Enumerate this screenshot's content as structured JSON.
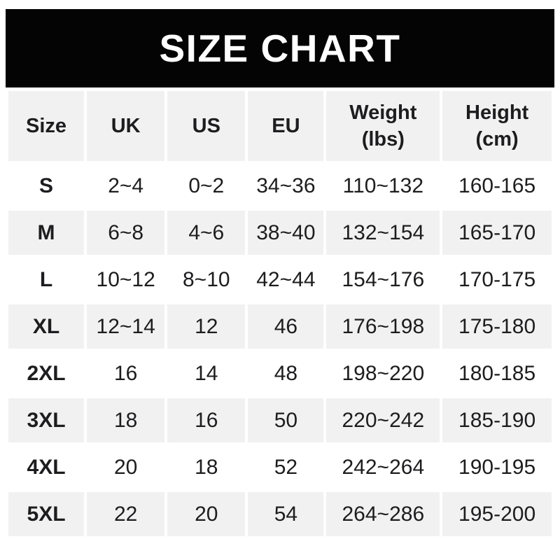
{
  "banner": {
    "title": "SIZE CHART"
  },
  "chart_data": {
    "type": "table",
    "title": "SIZE CHART",
    "columns": [
      [
        "Size"
      ],
      [
        "UK"
      ],
      [
        "US"
      ],
      [
        "EU"
      ],
      [
        "Weight",
        "(lbs)"
      ],
      [
        "Height",
        "(cm)"
      ]
    ],
    "rows": [
      [
        "S",
        "2~4",
        "0~2",
        "34~36",
        "110~132",
        "160-165"
      ],
      [
        "M",
        "6~8",
        "4~6",
        "38~40",
        "132~154",
        "165-170"
      ],
      [
        "L",
        "10~12",
        "8~10",
        "42~44",
        "154~176",
        "170-175"
      ],
      [
        "XL",
        "12~14",
        "12",
        "46",
        "176~198",
        "175-180"
      ],
      [
        "2XL",
        "16",
        "14",
        "48",
        "198~220",
        "180-185"
      ],
      [
        "3XL",
        "18",
        "16",
        "50",
        "220~242",
        "185-190"
      ],
      [
        "4XL",
        "20",
        "18",
        "52",
        "242~264",
        "190-195"
      ],
      [
        "5XL",
        "22",
        "20",
        "54",
        "264~286",
        "195-200"
      ]
    ]
  },
  "colors": {
    "banner_bg": "#040404",
    "banner_text": "#ffffff",
    "row_alt_bg": "#f1f1f1",
    "row_bg": "#ffffff",
    "text": "#1d1d1f"
  }
}
